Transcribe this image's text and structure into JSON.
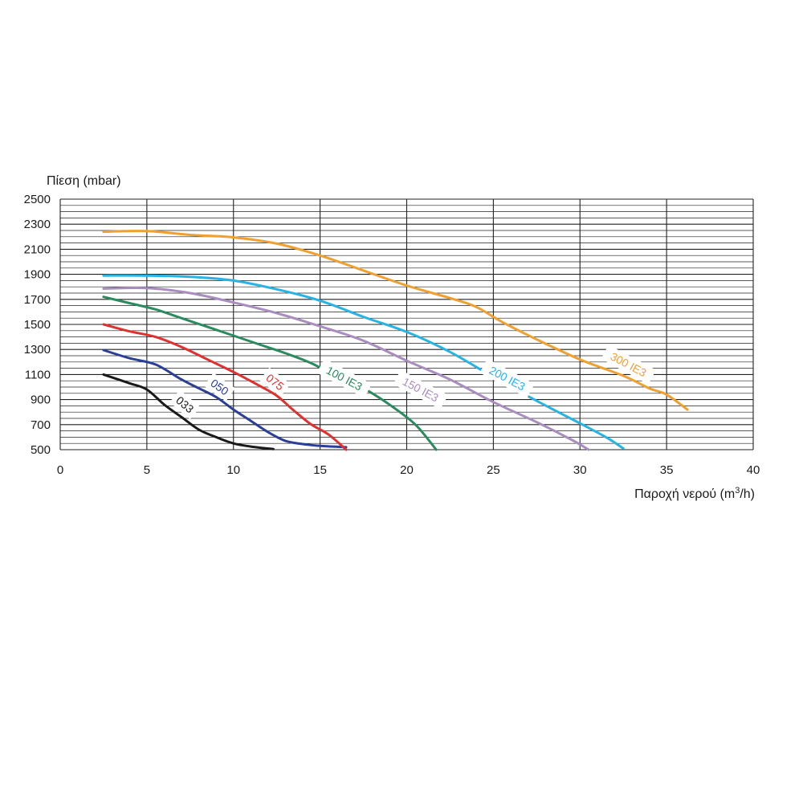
{
  "chart_data": {
    "type": "line",
    "title": "",
    "ylabel": "Πίεση (mbar)",
    "xlabel_main": "Παροχή νερού (m",
    "xlabel_sup": "3",
    "xlabel_tail": "/h)",
    "xlim": [
      0,
      40
    ],
    "ylim": [
      500,
      2500
    ],
    "x_ticks": [
      "0",
      "5",
      "10",
      "15",
      "20",
      "25",
      "30",
      "35",
      "40"
    ],
    "y_ticks": [
      "500",
      "700",
      "900",
      "1100",
      "1300",
      "1500",
      "1700",
      "1900",
      "2100",
      "2300",
      "2500"
    ],
    "grid": true,
    "legend": "inline labels on curves",
    "series": [
      {
        "name": "033",
        "color": "#1a1a1a",
        "label_pos": [
          7.2,
          860
        ],
        "label_rot": 40,
        "points": [
          [
            2.5,
            1100
          ],
          [
            4,
            1030
          ],
          [
            5,
            980
          ],
          [
            6,
            860
          ],
          [
            7,
            760
          ],
          [
            8,
            660
          ],
          [
            9,
            600
          ],
          [
            10,
            550
          ],
          [
            11,
            525
          ],
          [
            12.3,
            505
          ]
        ]
      },
      {
        "name": "050",
        "color": "#2b3f97",
        "label_pos": [
          9.2,
          1000
        ],
        "label_rot": 35,
        "points": [
          [
            2.5,
            1295
          ],
          [
            4,
            1230
          ],
          [
            5.5,
            1180
          ],
          [
            7,
            1060
          ],
          [
            8,
            990
          ],
          [
            9,
            920
          ],
          [
            10,
            820
          ],
          [
            11,
            730
          ],
          [
            12,
            640
          ],
          [
            13,
            570
          ],
          [
            14,
            545
          ],
          [
            15,
            530
          ],
          [
            16.5,
            520
          ]
        ]
      },
      {
        "name": "075",
        "color": "#e03030",
        "label_pos": [
          12.4,
          1040
        ],
        "label_rot": 38,
        "points": [
          [
            2.5,
            1500
          ],
          [
            4,
            1445
          ],
          [
            5.5,
            1400
          ],
          [
            7,
            1320
          ],
          [
            8.5,
            1220
          ],
          [
            10,
            1120
          ],
          [
            11.5,
            1010
          ],
          [
            12.5,
            930
          ],
          [
            13.5,
            810
          ],
          [
            14.5,
            700
          ],
          [
            15.5,
            620
          ],
          [
            16.5,
            500
          ]
        ]
      },
      {
        "name": "100 IE3",
        "color": "#2a8b5f",
        "label_pos": [
          16.4,
          1070
        ],
        "label_rot": 28,
        "points": [
          [
            2.5,
            1720
          ],
          [
            4,
            1670
          ],
          [
            5.5,
            1620
          ],
          [
            7,
            1550
          ],
          [
            8.5,
            1480
          ],
          [
            10,
            1410
          ],
          [
            11.5,
            1340
          ],
          [
            13,
            1270
          ],
          [
            14.5,
            1190
          ],
          [
            16,
            1080
          ],
          [
            17.5,
            990
          ],
          [
            19,
            860
          ],
          [
            20.5,
            700
          ],
          [
            21.7,
            500
          ]
        ]
      },
      {
        "name": "150 IE3",
        "color": "#a98dbf",
        "label_pos": [
          20.8,
          980
        ],
        "label_rot": 28,
        "points": [
          [
            2.5,
            1785
          ],
          [
            5,
            1790
          ],
          [
            7.5,
            1750
          ],
          [
            10,
            1675
          ],
          [
            12.5,
            1590
          ],
          [
            15,
            1485
          ],
          [
            17.5,
            1370
          ],
          [
            20,
            1210
          ],
          [
            22.5,
            1060
          ],
          [
            25,
            880
          ],
          [
            27.5,
            720
          ],
          [
            29.5,
            580
          ],
          [
            30.5,
            500
          ]
        ]
      },
      {
        "name": "200 IE3",
        "color": "#27b4e4",
        "label_pos": [
          25.8,
          1070
        ],
        "label_rot": 28,
        "points": [
          [
            2.5,
            1890
          ],
          [
            5,
            1890
          ],
          [
            7.5,
            1880
          ],
          [
            10,
            1850
          ],
          [
            12.5,
            1780
          ],
          [
            15,
            1690
          ],
          [
            17.5,
            1560
          ],
          [
            20,
            1440
          ],
          [
            22.5,
            1280
          ],
          [
            25,
            1080
          ],
          [
            27.5,
            890
          ],
          [
            30,
            710
          ],
          [
            31.5,
            600
          ],
          [
            32.5,
            510
          ]
        ]
      },
      {
        "name": "300 IE3",
        "color": "#f0a030",
        "label_pos": [
          32.8,
          1180
        ],
        "label_rot": 28,
        "points": [
          [
            2.5,
            2240
          ],
          [
            5,
            2245
          ],
          [
            7.5,
            2215
          ],
          [
            10,
            2195
          ],
          [
            12.5,
            2145
          ],
          [
            15,
            2050
          ],
          [
            17.5,
            1930
          ],
          [
            20,
            1810
          ],
          [
            22.5,
            1710
          ],
          [
            24,
            1640
          ],
          [
            25.5,
            1520
          ],
          [
            27.5,
            1380
          ],
          [
            30,
            1220
          ],
          [
            32.5,
            1090
          ],
          [
            34,
            990
          ],
          [
            35,
            940
          ],
          [
            36.2,
            820
          ]
        ]
      }
    ]
  }
}
